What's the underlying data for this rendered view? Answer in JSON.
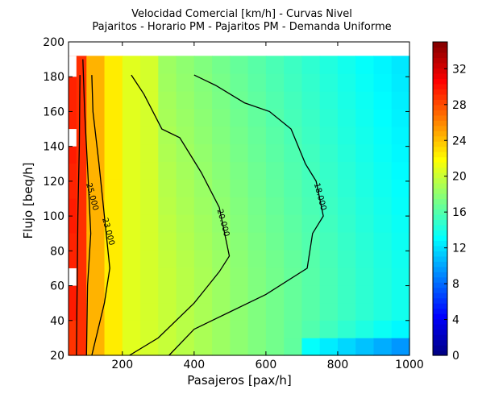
{
  "chart_data": {
    "type": "heatmap",
    "title": [
      "Velocidad Comercial [km/h] - Curvas Nivel",
      "Pajaritos - Horario PM - Pajaritos PM -  Demanda Uniforme"
    ],
    "xlabel": "Pasajeros [pax/h]",
    "ylabel": "Flujo [beq/h]",
    "xlim": [
      50,
      1000
    ],
    "ylim": [
      20,
      200
    ],
    "xticks": [
      "200",
      "400",
      "600",
      "800",
      "1000"
    ],
    "yticks": [
      "20",
      "40",
      "60",
      "80",
      "100",
      "120",
      "140",
      "160",
      "180",
      "200"
    ],
    "data_x_range": [
      50,
      1000
    ],
    "data_y_range": [
      20,
      192
    ],
    "colorbar": {
      "vmin": 0,
      "vmax": 35,
      "ticks": [
        "0",
        "4",
        "8",
        "12",
        "16",
        "20",
        "24",
        "28",
        "32"
      ],
      "colormap": "jet"
    },
    "contours": [
      {
        "label": "25.000",
        "points": [
          [
            100,
            20
          ],
          [
            103,
            60
          ],
          [
            112,
            90
          ],
          [
            105,
            120
          ],
          [
            95,
            160
          ],
          [
            90,
            190
          ]
        ]
      },
      {
        "label": "23.000",
        "points": [
          [
            115,
            20
          ],
          [
            150,
            50
          ],
          [
            165,
            70
          ],
          [
            150,
            100
          ],
          [
            135,
            130
          ],
          [
            118,
            160
          ],
          [
            115,
            181
          ]
        ]
      },
      {
        "label": "20.000",
        "points": [
          [
            220,
            20
          ],
          [
            300,
            30
          ],
          [
            400,
            50
          ],
          [
            470,
            68
          ],
          [
            498,
            77
          ],
          [
            470,
            105
          ],
          [
            420,
            125
          ],
          [
            360,
            145
          ],
          [
            310,
            150
          ],
          [
            260,
            170
          ],
          [
            225,
            181
          ]
        ]
      },
      {
        "label": "18.000",
        "points": [
          [
            330,
            20
          ],
          [
            400,
            35
          ],
          [
            500,
            45
          ],
          [
            600,
            55
          ],
          [
            715,
            70
          ],
          [
            730,
            90
          ],
          [
            760,
            100
          ],
          [
            740,
            120
          ],
          [
            710,
            130
          ],
          [
            670,
            150
          ],
          [
            610,
            160
          ],
          [
            540,
            165
          ],
          [
            460,
            175
          ],
          [
            400,
            181
          ]
        ]
      },
      {
        "label": "",
        "points": [
          [
            72,
            20
          ],
          [
            74,
            60
          ],
          [
            76,
            100
          ],
          [
            80,
            140
          ],
          [
            82,
            181
          ]
        ]
      }
    ]
  }
}
